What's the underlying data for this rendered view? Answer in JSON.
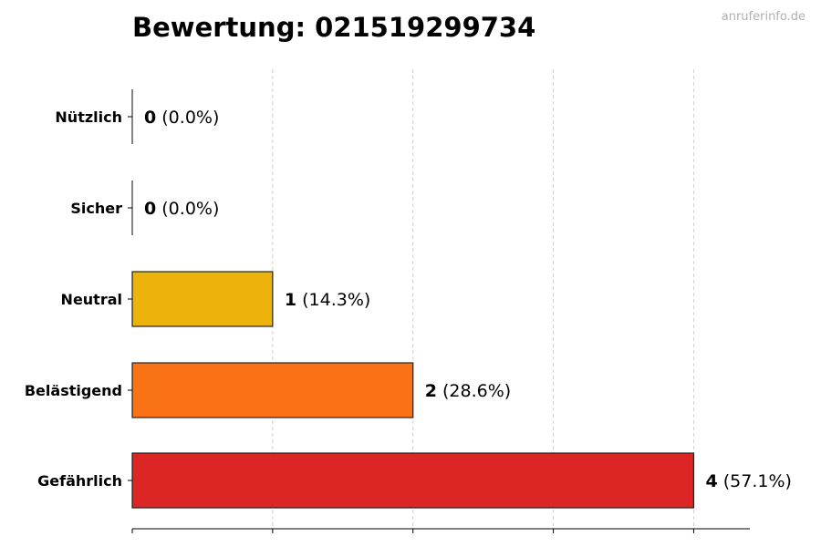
{
  "header": {
    "title": "Bewertung: 021519299734",
    "watermark": "anruferinfo.de"
  },
  "chart_data": {
    "type": "bar",
    "orientation": "horizontal",
    "title": "Bewertung: 021519299734",
    "categories": [
      "Nützlich",
      "Sicher",
      "Neutral",
      "Belästigend",
      "Gefährlich"
    ],
    "values": [
      0,
      0,
      1,
      2,
      4
    ],
    "percent_labels": [
      "(0.0%)",
      "(0.0%)",
      "(14.3%)",
      "(28.6%)",
      "(57.1%)"
    ],
    "colors": [
      "#2e9e44",
      "#2e9e44",
      "#ebb30b",
      "#f97316",
      "#dc2626"
    ],
    "xlim": [
      0,
      4.4
    ],
    "grid": "x-dashed",
    "xlabel": "",
    "ylabel": ""
  }
}
